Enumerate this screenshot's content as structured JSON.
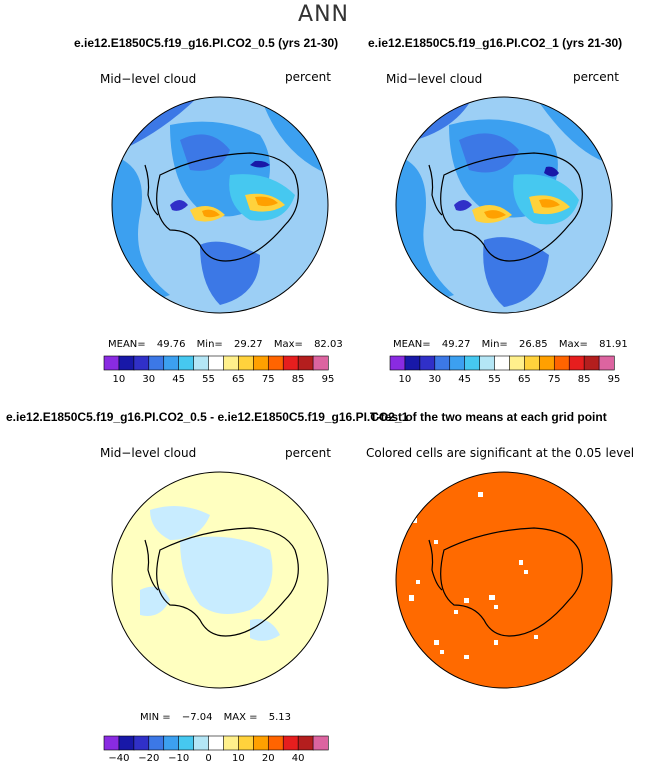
{
  "page_title": "ANN",
  "panels": [
    {
      "case_title": "e.ie12.E1850C5.f19_g16.PI.CO2_0.5 (yrs 21-30)",
      "variable": "Mid−level cloud",
      "units": "percent",
      "stats": {
        "label1": "MEAN=",
        "value1": "49.76",
        "label2": "Min=",
        "value2": "29.27",
        "label3": "Max=",
        "value3": "82.03"
      }
    },
    {
      "case_title": "e.ie12.E1850C5.f19_g16.PI.CO2_1 (yrs 21-30)",
      "variable": "Mid−level cloud",
      "units": "percent",
      "stats": {
        "label1": "MEAN=",
        "value1": "49.27",
        "label2": "Min=",
        "value2": "26.85",
        "label3": "Max=",
        "value3": "81.91"
      }
    },
    {
      "case_title": "e.ie12.E1850C5.f19_g16.PI.CO2_0.5 - e.ie12.E1850C5.f19_g16.PI.CO2_1",
      "variable": "Mid−level cloud",
      "units": "percent",
      "stats": {
        "label1": "MIN =",
        "value1": "−7.04",
        "label2": "MAX =",
        "value2": "5.13"
      }
    },
    {
      "case_title": "T-test of the two means at each grid point",
      "subtitle": "Colored cells are significant at the 0.05 level"
    }
  ],
  "chart_data": [
    {
      "type": "heatmap",
      "projection": "south-polar-stereographic",
      "variable": "Mid−level cloud",
      "units": "percent",
      "mean": 49.76,
      "min": 29.27,
      "max": 82.03,
      "colorbar_levels": [
        10,
        30,
        45,
        55,
        65,
        75,
        85,
        95
      ],
      "colorbar_colors": [
        "#8a2be2",
        "#1818a8",
        "#3030c8",
        "#3c78e6",
        "#3ca0f0",
        "#46c8f0",
        "#b4e6f6",
        "#ffffff",
        "#fff08c",
        "#ffd23c",
        "#ffa000",
        "#ff6400",
        "#e61e1e",
        "#b41e1e",
        "#dc64a0"
      ]
    },
    {
      "type": "heatmap",
      "projection": "south-polar-stereographic",
      "variable": "Mid−level cloud",
      "units": "percent",
      "mean": 49.27,
      "min": 26.85,
      "max": 81.91,
      "colorbar_levels": [
        10,
        30,
        45,
        55,
        65,
        75,
        85,
        95
      ],
      "colorbar_colors": [
        "#8a2be2",
        "#1818a8",
        "#3030c8",
        "#3c78e6",
        "#3ca0f0",
        "#46c8f0",
        "#b4e6f6",
        "#ffffff",
        "#fff08c",
        "#ffd23c",
        "#ffa000",
        "#ff6400",
        "#e61e1e",
        "#b41e1e",
        "#dc64a0"
      ]
    },
    {
      "type": "heatmap",
      "projection": "south-polar-stereographic",
      "variable": "Mid−level cloud",
      "units": "percent",
      "min": -7.04,
      "max": 5.13,
      "colorbar_levels": [
        -40,
        -20,
        -10,
        0,
        10,
        20,
        40
      ],
      "colorbar_colors": [
        "#8a2be2",
        "#1818a8",
        "#3030c8",
        "#3c78e6",
        "#3ca0f0",
        "#46c8f0",
        "#b4e6f6",
        "#ffffff",
        "#fff08c",
        "#ffd23c",
        "#ffa000",
        "#ff6400",
        "#e61e1e",
        "#b41e1e",
        "#dc64a0"
      ]
    },
    {
      "type": "heatmap",
      "projection": "south-polar-stereographic",
      "significant_color": "#ff6a00",
      "insignificant_color": "#ffffff"
    }
  ],
  "colors": {
    "ocean_light": "#9ccff5",
    "cloud_blue": "#3ca0f0",
    "cloud_dark": "#3c78e6",
    "diff_yellow": "#ffffc0",
    "diff_blue": "#c8ecff",
    "significant_orange": "#ff6a00",
    "coastline": "#000000"
  }
}
